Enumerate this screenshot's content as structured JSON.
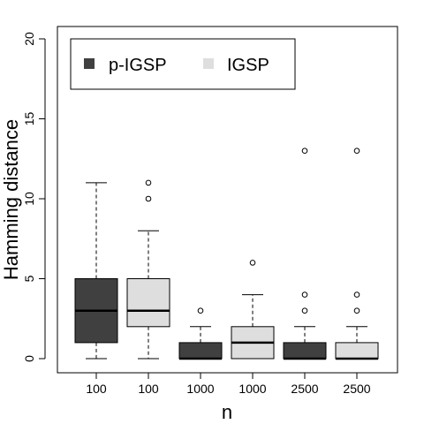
{
  "chart_data": {
    "type": "boxplot",
    "xlabel": "n",
    "ylabel": "Hamming distance",
    "ylim": [
      0,
      20
    ],
    "yticks": [
      0,
      5,
      10,
      15,
      20
    ],
    "legend": {
      "placement": "top-left",
      "entries": [
        {
          "name": "p-IGSP",
          "color": "#404040"
        },
        {
          "name": "IGSP",
          "color": "#dedede"
        }
      ]
    },
    "categories": [
      "100",
      "100",
      "1000",
      "1000",
      "2500",
      "2500"
    ],
    "boxes": [
      {
        "label": "100",
        "series": "p-IGSP",
        "color": "#404040",
        "whisker_low": 0,
        "q1": 1,
        "median": 3,
        "q3": 5,
        "whisker_high": 11,
        "outliers": []
      },
      {
        "label": "100",
        "series": "IGSP",
        "color": "#dedede",
        "whisker_low": 0,
        "q1": 2,
        "median": 3,
        "q3": 5,
        "whisker_high": 8,
        "outliers": [
          10,
          11
        ]
      },
      {
        "label": "1000",
        "series": "p-IGSP",
        "color": "#404040",
        "whisker_low": 0,
        "q1": 0,
        "median": 0,
        "q3": 1,
        "whisker_high": 2,
        "outliers": [
          3
        ]
      },
      {
        "label": "1000",
        "series": "IGSP",
        "color": "#dedede",
        "whisker_low": 0,
        "q1": 0,
        "median": 1,
        "q3": 2,
        "whisker_high": 4,
        "outliers": [
          6
        ]
      },
      {
        "label": "2500",
        "series": "p-IGSP",
        "color": "#404040",
        "whisker_low": 0,
        "q1": 0,
        "median": 0,
        "q3": 1,
        "whisker_high": 2,
        "outliers": [
          3,
          4,
          13
        ]
      },
      {
        "label": "2500",
        "series": "IGSP",
        "color": "#dedede",
        "whisker_low": 0,
        "q1": 0,
        "median": 0,
        "q3": 1,
        "whisker_high": 2,
        "outliers": [
          3,
          4,
          13
        ]
      }
    ]
  }
}
